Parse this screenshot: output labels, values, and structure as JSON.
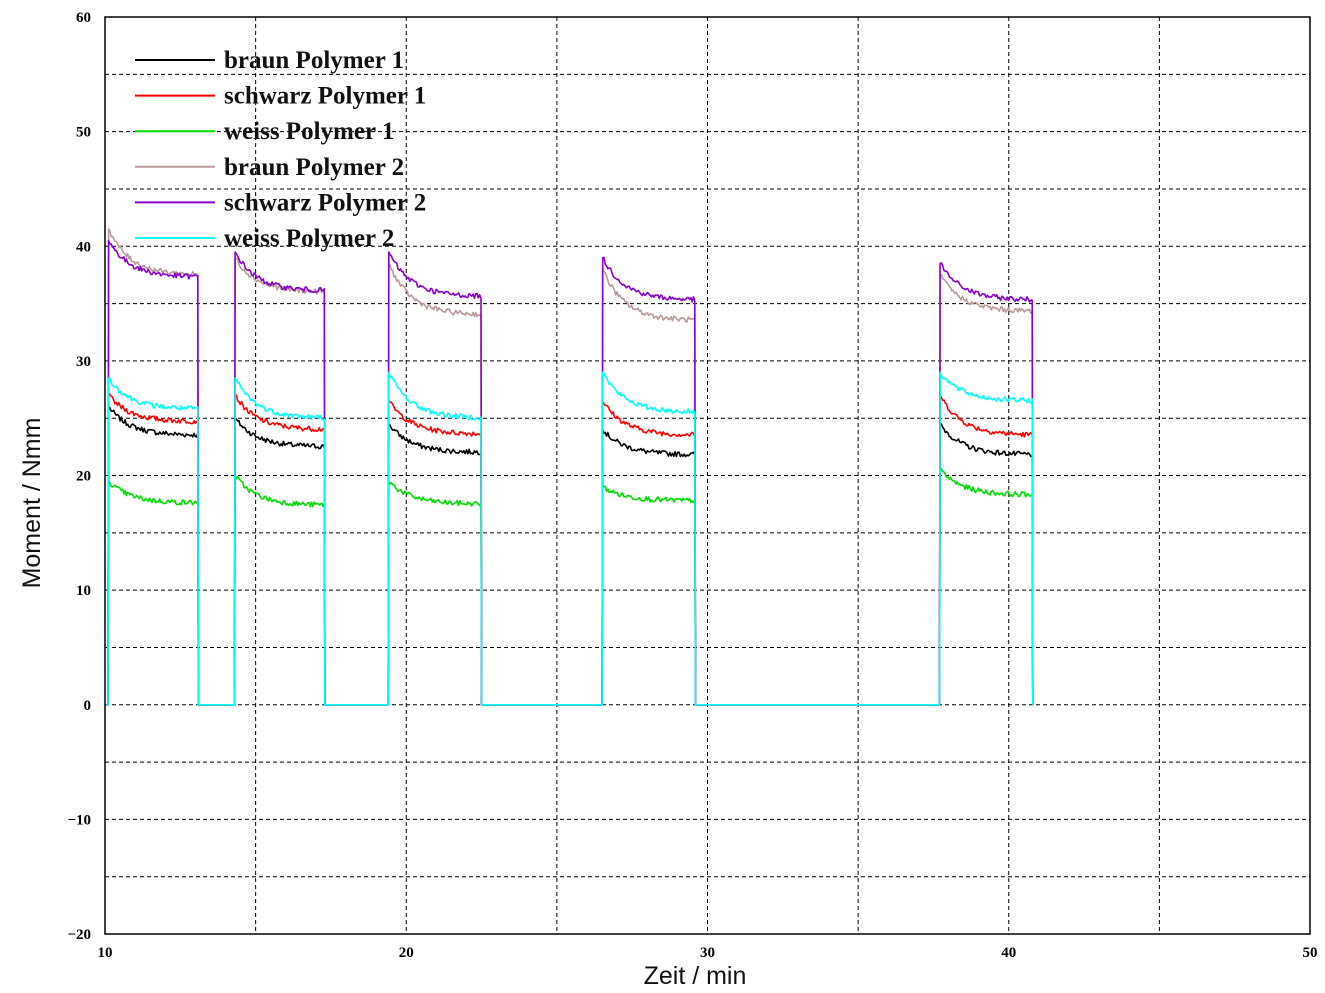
{
  "chart_data": {
    "type": "line",
    "title": "",
    "xlabel": "Zeit / min",
    "ylabel": "Moment / Nmm",
    "xlim": [
      10,
      50
    ],
    "ylim": [
      -20,
      60
    ],
    "x_ticks": [
      10,
      20,
      30,
      40,
      50
    ],
    "y_ticks": [
      -20,
      -10,
      0,
      10,
      20,
      30,
      40,
      50,
      60
    ],
    "x_ticks_labels": [
      "10",
      "20",
      "30",
      "40",
      "50"
    ],
    "y_ticks_labels": [
      "−20",
      "−10",
      "0",
      "10",
      "20",
      "30",
      "40",
      "50",
      "60"
    ],
    "grid": true,
    "legend_position": "top-left",
    "segments": [
      {
        "start": 10.1,
        "end": 13.1
      },
      {
        "start": 14.3,
        "end": 17.3
      },
      {
        "start": 19.4,
        "end": 22.5
      },
      {
        "start": 26.5,
        "end": 29.6
      },
      {
        "start": 37.7,
        "end": 40.8
      }
    ],
    "series": [
      {
        "name": "braun Polymer 1",
        "color": "#000000",
        "peaks": [
          26,
          25,
          24.5,
          24,
          24.5
        ],
        "ends": [
          23.5,
          22.5,
          22,
          21.8,
          21.8
        ]
      },
      {
        "name": "schwarz Polymer 1",
        "color": "#ff0000",
        "peaks": [
          27,
          27,
          26.5,
          26.5,
          27
        ],
        "ends": [
          24.7,
          24,
          23.6,
          23.5,
          23.5
        ]
      },
      {
        "name": "weiss Polymer 1",
        "color": "#00dd00",
        "peaks": [
          19.5,
          20,
          19.5,
          19,
          20.5
        ],
        "ends": [
          17.6,
          17.4,
          17.5,
          17.8,
          18.3
        ]
      },
      {
        "name": "braun Polymer 2",
        "color": "#bb9999",
        "peaks": [
          41.5,
          39,
          38.5,
          38,
          37.5
        ],
        "ends": [
          37.5,
          36,
          34,
          33.5,
          34.3
        ]
      },
      {
        "name": "schwarz Polymer 2",
        "color": "#8800cc",
        "peaks": [
          40.5,
          39.5,
          39.5,
          39,
          38.5
        ],
        "ends": [
          37.3,
          36.1,
          35.6,
          35.3,
          35.3
        ]
      },
      {
        "name": "weiss Polymer 2",
        "color": "#00ffff",
        "peaks": [
          28.5,
          28.5,
          29,
          29,
          29
        ],
        "ends": [
          25.8,
          25,
          25,
          25.5,
          26.5
        ]
      }
    ]
  }
}
